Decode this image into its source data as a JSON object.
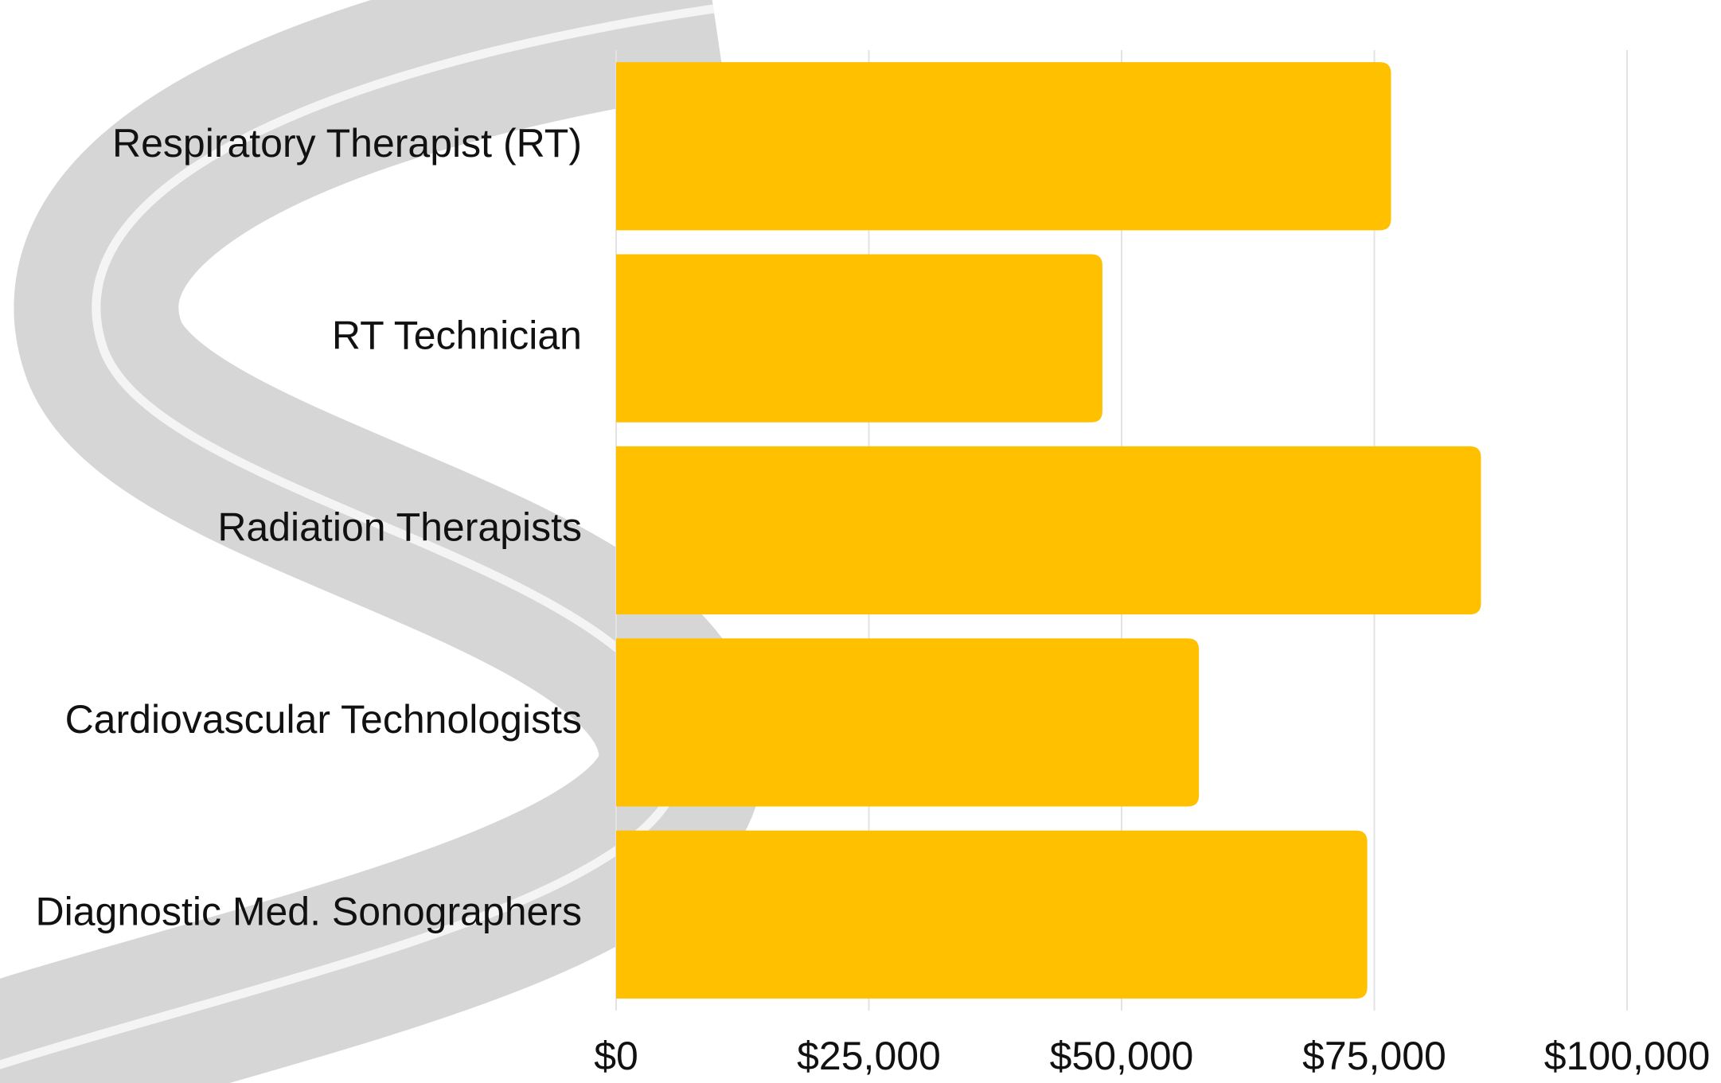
{
  "chart_data": {
    "type": "barh",
    "categories": [
      "Respiratory Therapist (RT)",
      "RT Technician",
      "Radiation Therapists",
      "Cardiovascular Technologists",
      "Diagnostic Med. Sonographers"
    ],
    "values": [
      76650,
      48100,
      85550,
      57650,
      74300
    ],
    "color": "#ffc000",
    "xlim": [
      0,
      100000
    ],
    "xticks": [
      {
        "value": 0,
        "label": "$0"
      },
      {
        "value": 25000,
        "label": "$25,000"
      },
      {
        "value": 50000,
        "label": "$50,000"
      },
      {
        "value": 75000,
        "label": "$75,000"
      },
      {
        "value": 100000,
        "label": "$100,000"
      }
    ],
    "grid": true
  }
}
